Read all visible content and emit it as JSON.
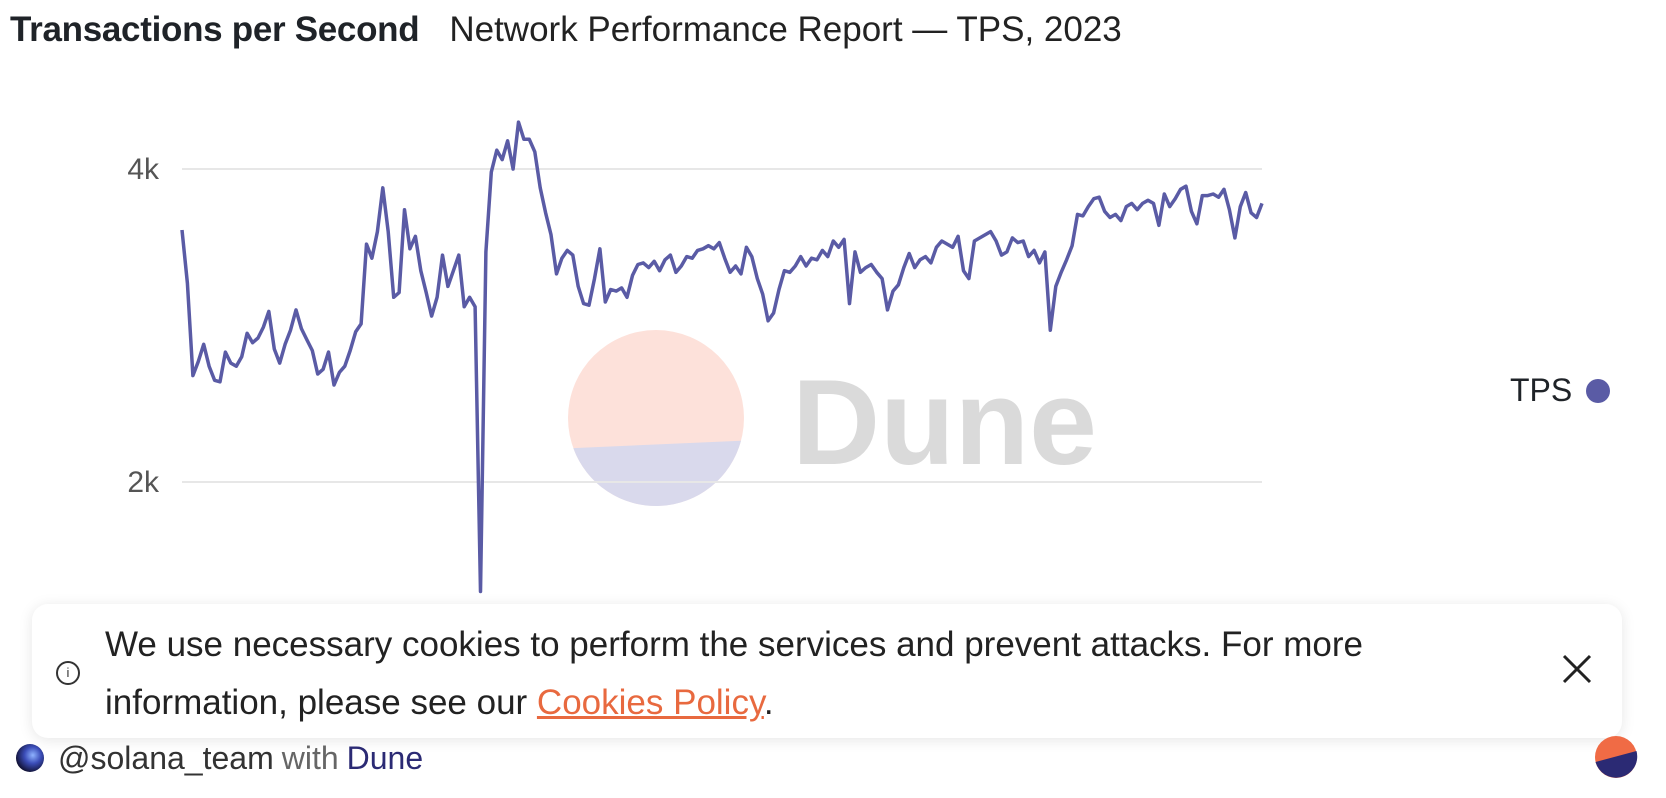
{
  "header": {
    "title": "Transactions per Second",
    "subtitle": "Network Performance Report — TPS, 2023"
  },
  "legend": {
    "label": "TPS"
  },
  "watermark": {
    "text": "Dune"
  },
  "banner": {
    "message_before": "We use necessary cookies to perform the services and prevent attacks. For more information, please see our ",
    "link_text": "Cookies Policy",
    "message_after": ".",
    "info_icon": "info-icon",
    "close_icon": "close-icon"
  },
  "footer": {
    "handle": "@solana_team",
    "with": "with",
    "brand": "Dune"
  },
  "colors": {
    "series": "#5a5ba5",
    "grid": "#e7e7e7",
    "link": "#e8693f",
    "brand_orange": "#f06b45",
    "brand_navy": "#2b2a74"
  },
  "chart_data": {
    "type": "line",
    "title": "Transactions per Second",
    "subtitle": "Network Performance Report — TPS, 2023",
    "xlabel": "",
    "ylabel": "",
    "ylim": [
      1200,
      4400
    ],
    "yticks": [
      2000,
      4000
    ],
    "ytick_labels": [
      "2k",
      "4k"
    ],
    "grid": true,
    "legend": "right",
    "series": [
      {
        "name": "TPS",
        "color": "#5a5ba5",
        "values": [
          3610,
          3270,
          2680,
          2770,
          2880,
          2740,
          2650,
          2640,
          2830,
          2760,
          2740,
          2800,
          2950,
          2890,
          2920,
          2990,
          3090,
          2850,
          2760,
          2880,
          2970,
          3100,
          2980,
          2910,
          2840,
          2690,
          2720,
          2830,
          2620,
          2700,
          2740,
          2840,
          2960,
          3010,
          3520,
          3430,
          3600,
          3880,
          3600,
          3180,
          3210,
          3740,
          3490,
          3570,
          3350,
          3210,
          3060,
          3180,
          3450,
          3250,
          3350,
          3450,
          3120,
          3180,
          3120,
          1300,
          3470,
          3980,
          4120,
          4060,
          4180,
          4000,
          4300,
          4190,
          4190,
          4110,
          3880,
          3720,
          3580,
          3330,
          3430,
          3480,
          3450,
          3250,
          3140,
          3130,
          3300,
          3490,
          3150,
          3230,
          3220,
          3240,
          3180,
          3320,
          3390,
          3400,
          3370,
          3410,
          3350,
          3420,
          3450,
          3340,
          3380,
          3440,
          3430,
          3480,
          3490,
          3510,
          3490,
          3530,
          3430,
          3340,
          3380,
          3330,
          3500,
          3440,
          3300,
          3200,
          3030,
          3080,
          3230,
          3350,
          3340,
          3380,
          3440,
          3380,
          3430,
          3420,
          3480,
          3440,
          3540,
          3500,
          3550,
          3140,
          3470,
          3340,
          3370,
          3390,
          3340,
          3300,
          3100,
          3220,
          3260,
          3370,
          3460,
          3370,
          3420,
          3440,
          3400,
          3500,
          3540,
          3520,
          3500,
          3570,
          3350,
          3300,
          3540,
          3560,
          3580,
          3600,
          3540,
          3450,
          3470,
          3560,
          3530,
          3540,
          3440,
          3480,
          3400,
          3470,
          2970,
          3250,
          3340,
          3420,
          3510,
          3710,
          3700,
          3760,
          3810,
          3820,
          3730,
          3690,
          3710,
          3670,
          3760,
          3780,
          3740,
          3780,
          3800,
          3780,
          3640,
          3840,
          3760,
          3810,
          3870,
          3890,
          3730,
          3650,
          3830,
          3830,
          3840,
          3820,
          3870,
          3740,
          3560,
          3760,
          3850,
          3720,
          3690,
          3780
        ]
      }
    ]
  }
}
